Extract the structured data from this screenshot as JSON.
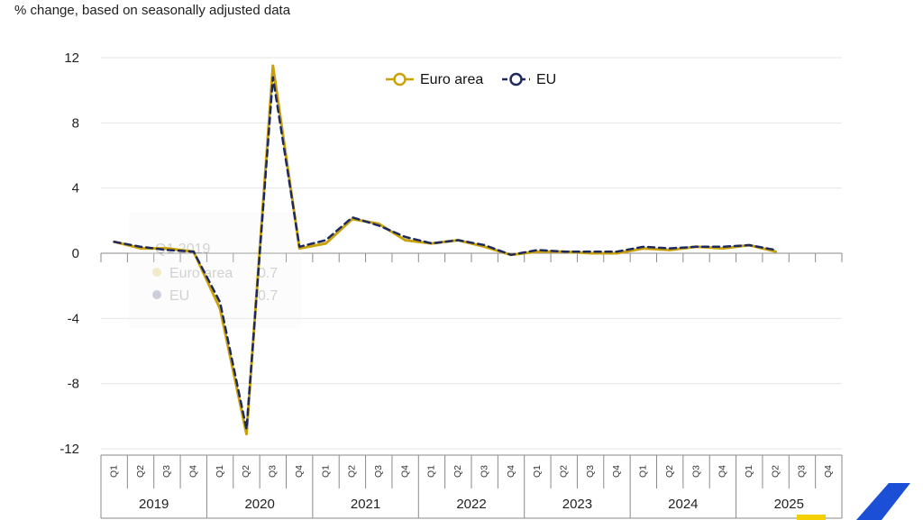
{
  "page": {
    "subtitle": "% change, based on seasonally adjusted data"
  },
  "colors": {
    "euro_area": "#c9a20b",
    "eu": "#1e2a5e",
    "grid": "#e6e6e6",
    "axis": "#8a8a8a",
    "accent_blue": "#1a4fd6",
    "accent_yellow": "#f5d000"
  },
  "tooltip": {
    "title": "Q1 2019",
    "rows": [
      {
        "label": "Euro area",
        "value": "0.7"
      },
      {
        "label": "EU",
        "value": "0.7"
      }
    ]
  },
  "chart_data": {
    "type": "line",
    "ylim": [
      -12,
      12
    ],
    "yticks": [
      "12",
      "8",
      "4",
      "0",
      "-4",
      "-8",
      "-12"
    ],
    "grid": true,
    "legend": "top-center",
    "years": [
      "2019",
      "2020",
      "2021",
      "2022",
      "2023",
      "2024",
      "2025"
    ],
    "quarter_labels": [
      "Q1",
      "Q2",
      "Q3",
      "Q4"
    ],
    "categories": [
      "2019 Q1",
      "2019 Q2",
      "2019 Q3",
      "2019 Q4",
      "2020 Q1",
      "2020 Q2",
      "2020 Q3",
      "2020 Q4",
      "2021 Q1",
      "2021 Q2",
      "2021 Q3",
      "2021 Q4",
      "2022 Q1",
      "2022 Q2",
      "2022 Q3",
      "2022 Q4",
      "2023 Q1",
      "2023 Q2",
      "2023 Q3",
      "2023 Q4",
      "2024 Q1",
      "2024 Q2",
      "2024 Q3",
      "2024 Q4",
      "2025 Q1",
      "2025 Q2",
      "2025 Q3",
      "2025 Q4"
    ],
    "series": [
      {
        "name": "Euro area",
        "values": [
          0.7,
          0.3,
          0.3,
          0.1,
          -3.4,
          -11.1,
          11.5,
          0.3,
          0.6,
          2.1,
          1.8,
          0.8,
          0.6,
          0.8,
          0.4,
          -0.1,
          0.1,
          0.1,
          0.0,
          0.0,
          0.3,
          0.2,
          0.4,
          0.3,
          0.5,
          0.1,
          null,
          null
        ]
      },
      {
        "name": "EU",
        "values": [
          0.7,
          0.4,
          0.2,
          0.1,
          -3.0,
          -10.8,
          10.8,
          0.4,
          0.8,
          2.2,
          1.7,
          1.0,
          0.6,
          0.8,
          0.5,
          -0.1,
          0.2,
          0.1,
          0.1,
          0.1,
          0.4,
          0.3,
          0.4,
          0.4,
          0.5,
          0.2,
          null,
          null
        ]
      }
    ]
  }
}
